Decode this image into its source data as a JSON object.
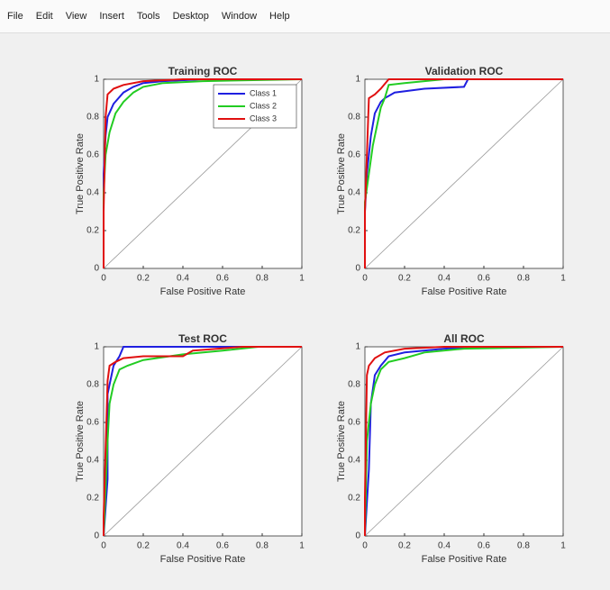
{
  "menu": [
    "File",
    "Edit",
    "View",
    "Insert",
    "Tools",
    "Desktop",
    "Window",
    "Help"
  ],
  "chart_data": [
    {
      "type": "line",
      "title": "Training ROC",
      "xlabel": "False Positive Rate",
      "ylabel": "True Positive Rate",
      "xlim": [
        0,
        1
      ],
      "ylim": [
        0,
        1
      ],
      "xticks": [
        0,
        0.2,
        0.4,
        0.6,
        0.8,
        1
      ],
      "yticks": [
        0,
        0.2,
        0.4,
        0.6,
        0.8,
        1
      ],
      "legend": "upper right",
      "series": [
        {
          "name": "Class 1",
          "color": "#1f1fe0",
          "x": [
            0,
            0,
            0.01,
            0.02,
            0.05,
            0.1,
            0.15,
            0.2,
            0.3,
            0.5,
            1
          ],
          "values": [
            0,
            0.5,
            0.7,
            0.8,
            0.87,
            0.93,
            0.96,
            0.98,
            0.99,
            1,
            1
          ]
        },
        {
          "name": "Class 2",
          "color": "#22cc22",
          "x": [
            0,
            0,
            0.01,
            0.03,
            0.06,
            0.1,
            0.15,
            0.2,
            0.3,
            0.5,
            1
          ],
          "values": [
            0,
            0.4,
            0.6,
            0.72,
            0.82,
            0.88,
            0.93,
            0.96,
            0.98,
            0.99,
            1
          ]
        },
        {
          "name": "Class 3",
          "color": "#e01010",
          "x": [
            0,
            0,
            0.01,
            0.02,
            0.05,
            0.1,
            0.2,
            0.4,
            0.6,
            1
          ],
          "values": [
            0,
            0.3,
            0.8,
            0.92,
            0.95,
            0.97,
            0.99,
            1,
            1,
            1
          ]
        }
      ]
    },
    {
      "type": "line",
      "title": "Validation ROC",
      "xlabel": "False Positive Rate",
      "ylabel": "True Positive Rate",
      "xlim": [
        0,
        1
      ],
      "ylim": [
        0,
        1
      ],
      "xticks": [
        0,
        0.2,
        0.4,
        0.6,
        0.8,
        1
      ],
      "yticks": [
        0,
        0.2,
        0.4,
        0.6,
        0.8,
        1
      ],
      "series": [
        {
          "color": "#1f1fe0",
          "x": [
            0,
            0,
            0.01,
            0.03,
            0.05,
            0.08,
            0.1,
            0.15,
            0.3,
            0.5,
            0.52,
            1
          ],
          "values": [
            0,
            0.3,
            0.5,
            0.7,
            0.82,
            0.88,
            0.9,
            0.93,
            0.95,
            0.96,
            1,
            1
          ]
        },
        {
          "color": "#22cc22",
          "x": [
            0,
            0,
            0.02,
            0.04,
            0.06,
            0.08,
            0.1,
            0.12,
            0.2,
            0.4,
            1
          ],
          "values": [
            0,
            0.35,
            0.5,
            0.65,
            0.75,
            0.85,
            0.9,
            0.97,
            0.98,
            1,
            1
          ]
        },
        {
          "color": "#e01010",
          "x": [
            0,
            0,
            0.02,
            0.05,
            0.08,
            0.12,
            0.3,
            1
          ],
          "values": [
            0,
            0.3,
            0.9,
            0.92,
            0.95,
            1,
            1,
            1
          ]
        }
      ]
    },
    {
      "type": "line",
      "title": "Test ROC",
      "xlabel": "False Positive Rate",
      "ylabel": "True Positive Rate",
      "xlim": [
        0,
        1
      ],
      "ylim": [
        0,
        1
      ],
      "xticks": [
        0,
        0.2,
        0.4,
        0.6,
        0.8,
        1
      ],
      "yticks": [
        0,
        0.2,
        0.4,
        0.6,
        0.8,
        1
      ],
      "series": [
        {
          "color": "#1f1fe0",
          "x": [
            0,
            0.02,
            0.02,
            0.04,
            0.05,
            0.08,
            0.1,
            0.15,
            0.4,
            1
          ],
          "values": [
            0,
            0.3,
            0.75,
            0.85,
            0.9,
            0.95,
            1,
            1,
            1,
            1
          ]
        },
        {
          "color": "#22cc22",
          "x": [
            0,
            0.02,
            0.03,
            0.05,
            0.08,
            0.12,
            0.2,
            0.4,
            0.6,
            0.78,
            1
          ],
          "values": [
            0,
            0.5,
            0.7,
            0.8,
            0.88,
            0.9,
            0.93,
            0.96,
            0.98,
            1,
            1
          ]
        },
        {
          "color": "#e01010",
          "x": [
            0,
            0,
            0.02,
            0.03,
            0.06,
            0.1,
            0.2,
            0.4,
            0.45,
            0.7,
            1
          ],
          "values": [
            0,
            0.1,
            0.82,
            0.9,
            0.92,
            0.94,
            0.95,
            0.95,
            0.98,
            1,
            1
          ]
        }
      ]
    },
    {
      "type": "line",
      "title": "All ROC",
      "xlabel": "False Positive Rate",
      "ylabel": "True Positive Rate",
      "xlim": [
        0,
        1
      ],
      "ylim": [
        0,
        1
      ],
      "xticks": [
        0,
        0.2,
        0.4,
        0.6,
        0.8,
        1
      ],
      "yticks": [
        0,
        0.2,
        0.4,
        0.6,
        0.8,
        1
      ],
      "series": [
        {
          "color": "#1f1fe0",
          "x": [
            0,
            0.02,
            0.03,
            0.05,
            0.08,
            0.12,
            0.2,
            0.4,
            0.6,
            1
          ],
          "values": [
            0,
            0.35,
            0.7,
            0.85,
            0.9,
            0.95,
            0.97,
            0.99,
            1,
            1
          ]
        },
        {
          "color": "#22cc22",
          "x": [
            0,
            0.01,
            0.03,
            0.05,
            0.08,
            0.12,
            0.2,
            0.3,
            0.5,
            1
          ],
          "values": [
            0,
            0.5,
            0.7,
            0.8,
            0.88,
            0.92,
            0.94,
            0.97,
            0.99,
            1
          ]
        },
        {
          "color": "#e01010",
          "x": [
            0,
            0,
            0.01,
            0.02,
            0.05,
            0.1,
            0.2,
            0.4,
            1
          ],
          "values": [
            0,
            0.2,
            0.85,
            0.9,
            0.94,
            0.97,
            0.99,
            1,
            1
          ]
        }
      ]
    }
  ]
}
